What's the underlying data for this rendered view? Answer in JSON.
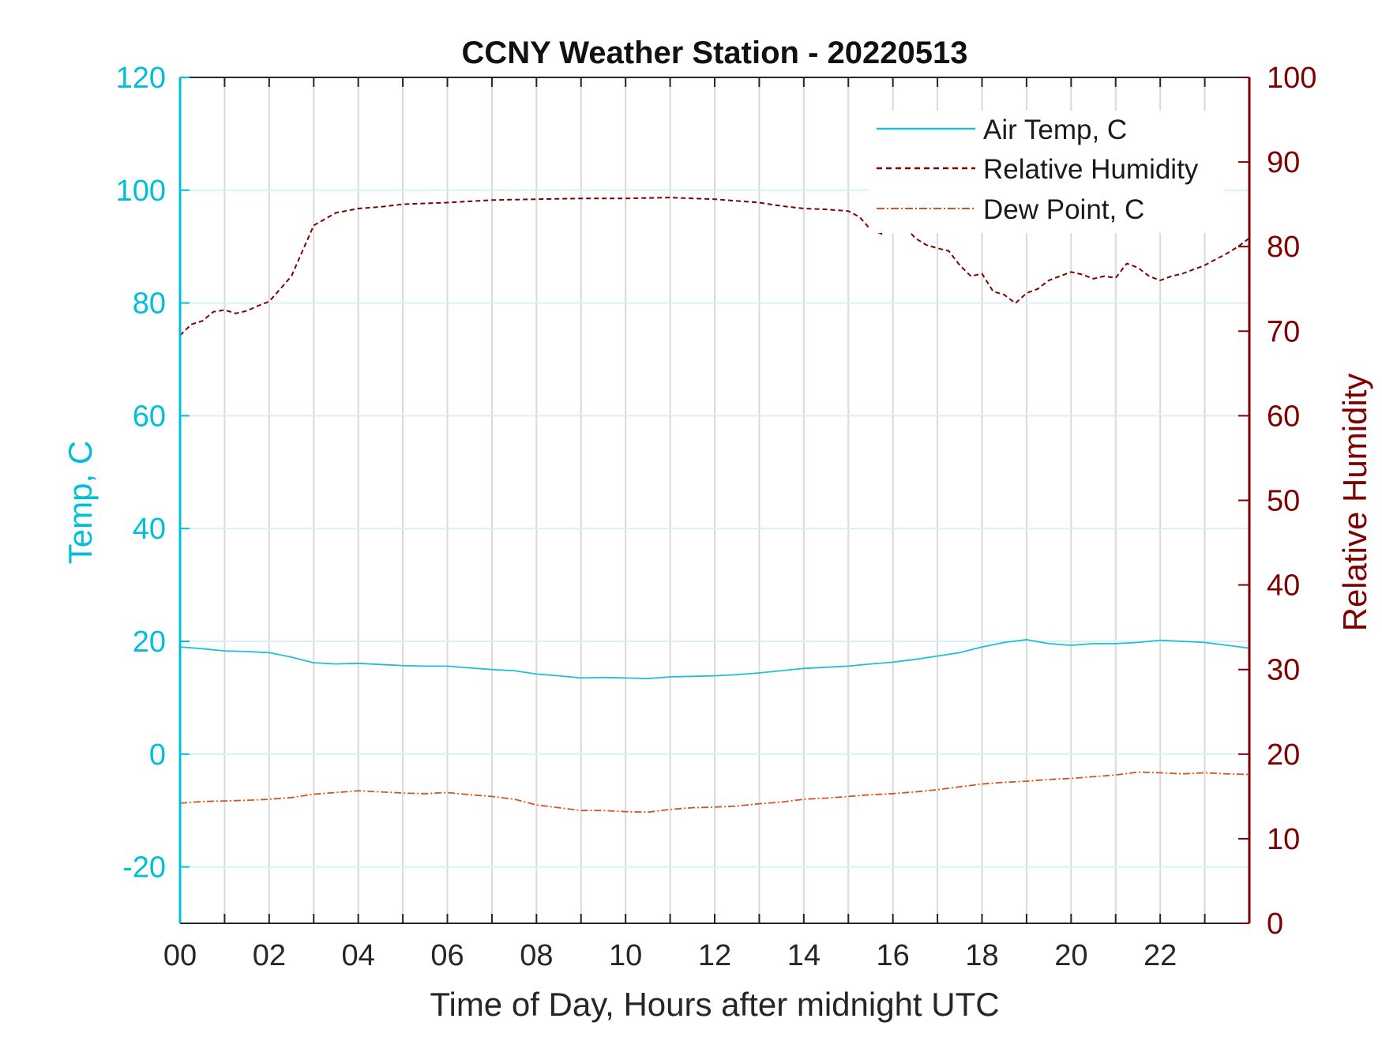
{
  "chart_data": {
    "type": "line",
    "title": "CCNY Weather Station - 20220513",
    "xlabel": "Time of Day, Hours after midnight UTC",
    "ylabel_left": "Temp, C",
    "ylabel_right": "Relative Humidity",
    "xlim": [
      0,
      24
    ],
    "ylim_left": [
      -30,
      120
    ],
    "ylim_right": [
      0,
      100
    ],
    "x_ticks": [
      0,
      2,
      4,
      6,
      8,
      10,
      12,
      14,
      16,
      18,
      20,
      22
    ],
    "x_tick_labels": [
      "00",
      "02",
      "04",
      "06",
      "08",
      "10",
      "12",
      "14",
      "16",
      "18",
      "20",
      "22"
    ],
    "y_ticks_left": [
      -20,
      0,
      20,
      40,
      60,
      80,
      100,
      120
    ],
    "y_ticks_right": [
      0,
      10,
      20,
      30,
      40,
      50,
      60,
      70,
      80,
      90,
      100
    ],
    "grid": true,
    "legend_position": "top-right",
    "colors": {
      "left_axis": "#00bfd8",
      "right_axis": "#7f0000",
      "dew_point": "#d95319"
    },
    "series": [
      {
        "name": "Air Temp, C",
        "axis": "left",
        "style": "solid",
        "color": "#1fbfd6",
        "x": [
          0,
          0.5,
          1,
          1.5,
          2,
          2.5,
          3,
          3.5,
          4,
          4.5,
          5,
          5.5,
          6,
          6.5,
          7,
          7.5,
          8,
          8.5,
          9,
          9.5,
          10,
          10.5,
          11,
          11.5,
          12,
          12.5,
          13,
          13.5,
          14,
          14.5,
          15,
          15.5,
          16,
          16.5,
          17,
          17.5,
          18,
          18.5,
          19,
          19.5,
          20,
          20.5,
          21,
          21.5,
          22,
          22.5,
          23,
          23.5,
          24
        ],
        "y": [
          19.0,
          18.7,
          18.3,
          18.2,
          18.0,
          17.2,
          16.2,
          16.0,
          16.1,
          15.9,
          15.7,
          15.6,
          15.6,
          15.3,
          15.0,
          14.8,
          14.2,
          13.9,
          13.5,
          13.6,
          13.5,
          13.4,
          13.7,
          13.8,
          13.9,
          14.1,
          14.4,
          14.8,
          15.2,
          15.4,
          15.6,
          16.0,
          16.3,
          16.8,
          17.4,
          18.0,
          19.0,
          19.8,
          20.3,
          19.6,
          19.3,
          19.6,
          19.6,
          19.8,
          20.2,
          20.0,
          19.8,
          19.3,
          18.8
        ]
      },
      {
        "name": "Relative Humidity",
        "axis": "right",
        "style": "dashed",
        "color": "#7f0000",
        "x": [
          0,
          0.25,
          0.5,
          0.75,
          1,
          1.25,
          1.5,
          1.75,
          2,
          2.25,
          2.5,
          2.75,
          3,
          3.5,
          4,
          4.5,
          5,
          6,
          7,
          8,
          9,
          10,
          11,
          12,
          13,
          13.5,
          14,
          14.5,
          15,
          15.25,
          15.5,
          15.75,
          16,
          16.25,
          16.5,
          16.75,
          17,
          17.25,
          17.5,
          17.75,
          18,
          18.25,
          18.5,
          18.75,
          19,
          19.25,
          19.5,
          19.75,
          20,
          20.25,
          20.5,
          20.75,
          21,
          21.25,
          21.5,
          21.75,
          22,
          22.25,
          22.5,
          22.75,
          23,
          23.25,
          23.5,
          23.75,
          24
        ],
        "y": [
          69.5,
          70.8,
          71.2,
          72.3,
          72.5,
          72.1,
          72.4,
          73.0,
          73.5,
          75.0,
          76.5,
          79.5,
          82.5,
          84.0,
          84.5,
          84.7,
          85.0,
          85.2,
          85.5,
          85.6,
          85.7,
          85.7,
          85.8,
          85.6,
          85.2,
          84.8,
          84.5,
          84.4,
          84.2,
          83.5,
          82.0,
          81.5,
          82.3,
          82.5,
          81.0,
          80.2,
          79.8,
          79.5,
          77.8,
          76.5,
          76.8,
          74.7,
          74.3,
          73.3,
          74.5,
          75.0,
          76.0,
          76.5,
          77.0,
          76.7,
          76.2,
          76.5,
          76.3,
          78.0,
          77.5,
          76.5,
          76.0,
          76.5,
          76.8,
          77.3,
          77.8,
          78.5,
          79.2,
          80.0,
          81.0
        ]
      },
      {
        "name": "Dew Point, C",
        "axis": "left",
        "style": "dashdot",
        "color": "#d95319",
        "x": [
          0,
          0.5,
          1,
          1.5,
          2,
          2.5,
          3,
          3.5,
          4,
          4.5,
          5,
          5.5,
          6,
          6.5,
          7,
          7.5,
          8,
          8.5,
          9,
          9.5,
          10,
          10.5,
          11,
          11.5,
          12,
          12.5,
          13,
          13.5,
          14,
          14.5,
          15,
          15.5,
          16,
          16.5,
          17,
          17.5,
          18,
          18.5,
          19,
          19.5,
          20,
          20.5,
          21,
          21.5,
          22,
          22.5,
          23,
          23.5,
          24
        ],
        "y": [
          -8.7,
          -8.4,
          -8.3,
          -8.2,
          -8.0,
          -7.7,
          -7.1,
          -6.8,
          -6.5,
          -6.7,
          -6.9,
          -7.0,
          -6.8,
          -7.2,
          -7.5,
          -8.0,
          -9.0,
          -9.5,
          -10.0,
          -10.0,
          -10.2,
          -10.3,
          -9.8,
          -9.5,
          -9.4,
          -9.2,
          -8.8,
          -8.5,
          -8.0,
          -7.8,
          -7.5,
          -7.2,
          -7.0,
          -6.7,
          -6.3,
          -5.8,
          -5.3,
          -5.0,
          -4.8,
          -4.5,
          -4.3,
          -4.0,
          -3.7,
          -3.2,
          -3.3,
          -3.5,
          -3.3,
          -3.5,
          -3.6
        ]
      }
    ]
  }
}
